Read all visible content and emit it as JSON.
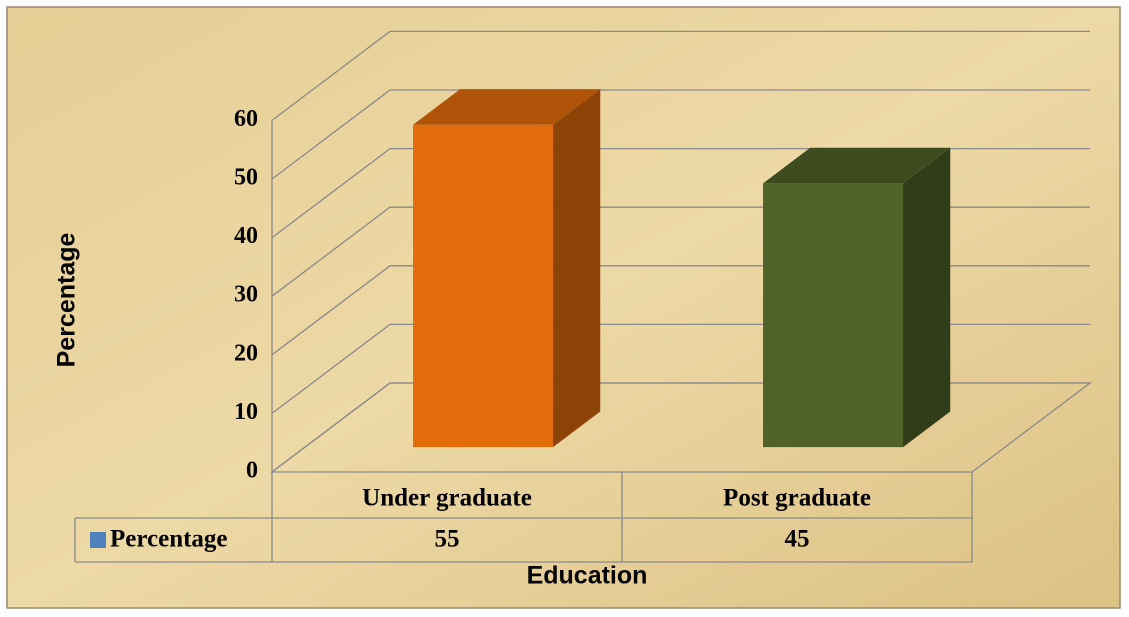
{
  "chart_data": {
    "type": "bar3d",
    "categories": [
      "Under graduate",
      "Post graduate"
    ],
    "series": [
      {
        "name": "Percentage",
        "color": "#4f81bd",
        "values": [
          55,
          45
        ]
      }
    ],
    "bar_colors": [
      "#e36c0a",
      "#4f6228"
    ],
    "ylim": [
      0,
      60
    ],
    "yticks": [
      0,
      10,
      20,
      30,
      40,
      50,
      60
    ],
    "x_label": "Education",
    "y_label": "Percentage",
    "grid": true,
    "data_table": true
  }
}
